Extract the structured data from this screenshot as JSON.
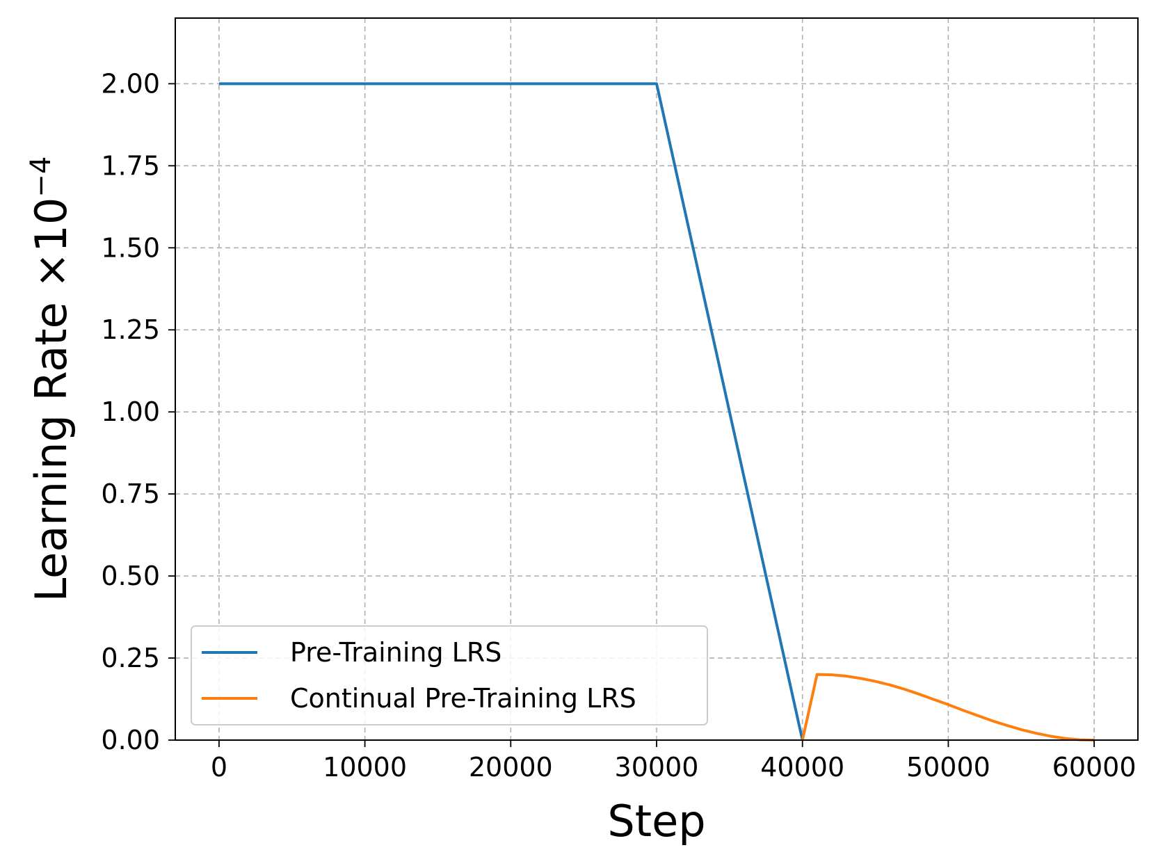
{
  "chart_data": {
    "type": "line",
    "title": "",
    "xlabel": "Step",
    "ylabel": "Learning Rate ×10",
    "ylabel_exponent": "−4",
    "xlim": [
      -3000,
      63000
    ],
    "ylim": [
      0,
      2.2
    ],
    "xticks": [
      0,
      10000,
      20000,
      30000,
      40000,
      50000,
      60000
    ],
    "xtick_labels": [
      "0",
      "10000",
      "20000",
      "30000",
      "40000",
      "50000",
      "60000"
    ],
    "yticks": [
      0,
      0.25,
      0.5,
      0.75,
      1.0,
      1.25,
      1.5,
      1.75,
      2.0
    ],
    "ytick_labels": [
      "0.00",
      "0.25",
      "0.50",
      "0.75",
      "1.00",
      "1.25",
      "1.50",
      "1.75",
      "2.00"
    ],
    "grid": true,
    "legend_position": "lower-left",
    "series": [
      {
        "name": "Pre-Training LRS",
        "color": "#1f77b4",
        "x": [
          0,
          30000,
          40000
        ],
        "y": [
          2.0,
          2.0,
          0.0
        ]
      },
      {
        "name": "Continual Pre-Training LRS",
        "color": "#ff7f0e",
        "x": [
          40000,
          41000,
          42000,
          43000,
          44000,
          45000,
          46000,
          47000,
          48000,
          49000,
          50000,
          51000,
          52000,
          53000,
          54000,
          55000,
          56000,
          57000,
          58000,
          59000,
          60000
        ],
        "y": [
          0.0,
          0.2,
          0.199,
          0.195,
          0.188,
          0.179,
          0.168,
          0.155,
          0.14,
          0.124,
          0.108,
          0.091,
          0.075,
          0.059,
          0.045,
          0.032,
          0.021,
          0.012,
          0.005,
          0.001,
          0.0
        ]
      }
    ]
  }
}
